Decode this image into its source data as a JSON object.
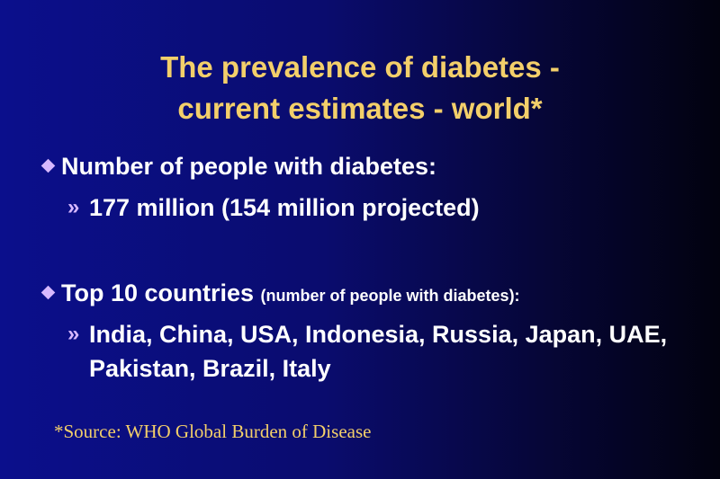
{
  "slide": {
    "title_line1": "The prevalence of diabetes -",
    "title_line2": "current estimates - world*",
    "bullets": [
      {
        "label": "Number of people with diabetes:",
        "label_small": "",
        "sub": "177 million (154 million projected)"
      },
      {
        "label": "Top 10 countries ",
        "label_small": "(number of people with diabetes):",
        "sub": "India, China, USA, Indonesia, Russia, Japan, UAE, Pakistan, Brazil, Italy"
      }
    ],
    "sub_marker": "»",
    "source": "*Source: WHO Global Burden of Disease"
  }
}
